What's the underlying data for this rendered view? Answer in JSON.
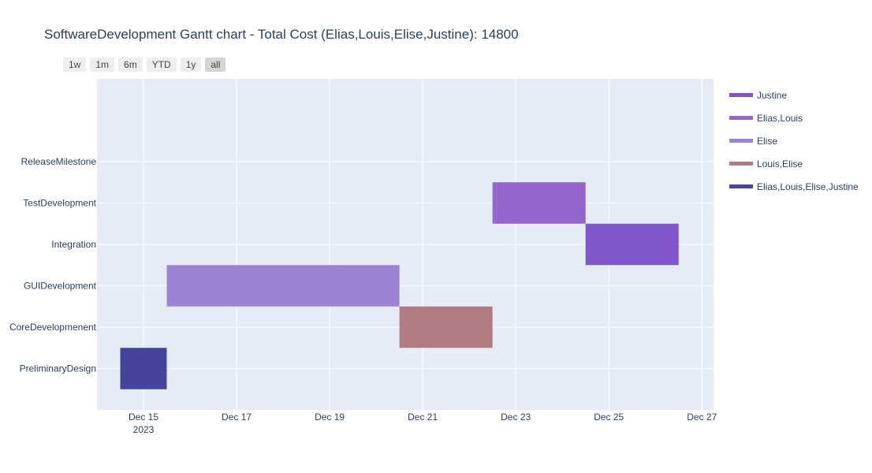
{
  "title": "SoftwareDevelopment Gantt chart - Total Cost (Elias,Louis,Elise,Justine): 14800",
  "range_buttons": [
    {
      "label": "1w",
      "active": false
    },
    {
      "label": "1m",
      "active": false
    },
    {
      "label": "6m",
      "active": false
    },
    {
      "label": "YTD",
      "active": false
    },
    {
      "label": "1y",
      "active": false
    },
    {
      "label": "all",
      "active": true
    }
  ],
  "chart_data": {
    "type": "bar",
    "orientation": "horizontal",
    "x_axis_type": "date",
    "x_range": [
      "2023-12-14",
      "2023-12-27 06:00"
    ],
    "x_tick_labels": [
      {
        "date": "2023-12-15",
        "label": "Dec 15",
        "sub": "2023"
      },
      {
        "date": "2023-12-17",
        "label": "Dec 17"
      },
      {
        "date": "2023-12-19",
        "label": "Dec 19"
      },
      {
        "date": "2023-12-21",
        "label": "Dec 21"
      },
      {
        "date": "2023-12-23",
        "label": "Dec 23"
      },
      {
        "date": "2023-12-25",
        "label": "Dec 25"
      },
      {
        "date": "2023-12-27",
        "label": "Dec 27"
      }
    ],
    "categories": [
      "PreliminaryDesign",
      "CoreDevelopmenent",
      "GUIDevelopment",
      "Integration",
      "TestDevelopment",
      "ReleaseMilestone"
    ],
    "tasks": [
      {
        "task": "PreliminaryDesign",
        "start": "2023-12-14 12:00",
        "finish": "2023-12-15 12:00",
        "resource": "Elias,Louis,Elise,Justine"
      },
      {
        "task": "GUIDevelopment",
        "start": "2023-12-15 12:00",
        "finish": "2023-12-20 12:00",
        "resource": "Elise"
      },
      {
        "task": "CoreDevelopmenent",
        "start": "2023-12-20 12:00",
        "finish": "2023-12-22 12:00",
        "resource": "Louis,Elise"
      },
      {
        "task": "TestDevelopment",
        "start": "2023-12-22 12:00",
        "finish": "2023-12-24 12:00",
        "resource": "Elias,Louis"
      },
      {
        "task": "Integration",
        "start": "2023-12-24 12:00",
        "finish": "2023-12-26 12:00",
        "resource": "Justine"
      }
    ],
    "legend": [
      {
        "name": "Justine",
        "color": "#7f56c9"
      },
      {
        "name": "Elias,Louis",
        "color": "#9466cb"
      },
      {
        "name": "Elise",
        "color": "#9b85d3"
      },
      {
        "name": "Louis,Elise",
        "color": "#b07c82"
      },
      {
        "name": "Elias,Louis,Elise,Justine",
        "color": "#45439c"
      }
    ],
    "legend_placement": "right",
    "grid": true,
    "plot_background": "#e5ecf6"
  }
}
